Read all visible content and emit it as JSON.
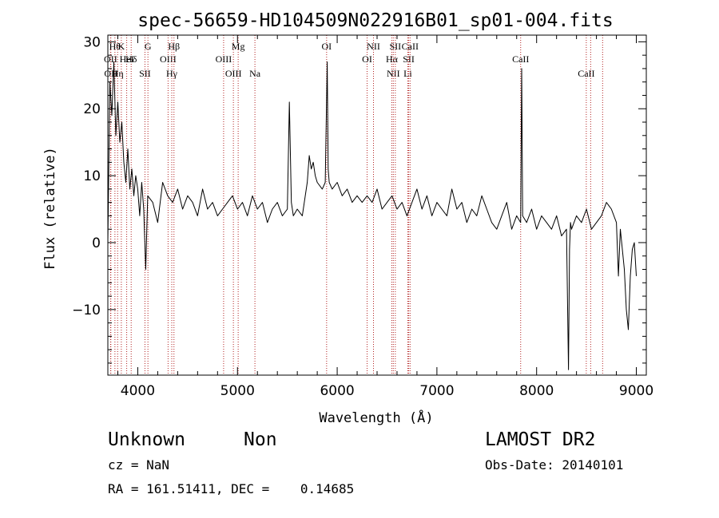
{
  "chart_data": {
    "type": "line",
    "title": "spec-56659-HD104509N022916B01_sp01-004.fits",
    "xlabel": "Wavelength (Å)",
    "ylabel": "Flux (relative)",
    "xlim": [
      3700,
      9100
    ],
    "ylim": [
      -19.8,
      31
    ],
    "xticks": [
      {
        "value": 4000,
        "label": "4000"
      },
      {
        "value": 5000,
        "label": "5000"
      },
      {
        "value": 6000,
        "label": "6000"
      },
      {
        "value": 7000,
        "label": "7000"
      },
      {
        "value": 8000,
        "label": "8000"
      },
      {
        "value": 9000,
        "label": "9000"
      }
    ],
    "yticks": [
      {
        "value": 30,
        "label": "30"
      },
      {
        "value": 20,
        "label": "20"
      },
      {
        "value": 10,
        "label": "10"
      },
      {
        "value": 0,
        "label": "0"
      },
      {
        "value": -10,
        "label": "−10"
      }
    ],
    "grid": false,
    "line_color": "#000000",
    "marker_line_color": "#b22222",
    "series": [
      {
        "x": [
          3700,
          3720,
          3740,
          3760,
          3780,
          3800,
          3820,
          3840,
          3860,
          3880,
          3900,
          3920,
          3940,
          3960,
          3980,
          4000,
          4020,
          4040,
          4060,
          4080,
          4100,
          4150,
          4200,
          4250,
          4300,
          4350,
          4400,
          4450,
          4500,
          4550,
          4600,
          4650,
          4700,
          4750,
          4800,
          4850,
          4900,
          4950,
          5000,
          5050,
          5100,
          5150,
          5200,
          5250,
          5300,
          5350,
          5400,
          5450,
          5500,
          5520,
          5540,
          5560,
          5600,
          5650,
          5700,
          5720,
          5740,
          5760,
          5780,
          5800,
          5850,
          5880,
          5900,
          5910,
          5920,
          5950,
          6000,
          6050,
          6100,
          6150,
          6200,
          6250,
          6300,
          6350,
          6400,
          6450,
          6500,
          6550,
          6600,
          6650,
          6700,
          6750,
          6800,
          6850,
          6900,
          6950,
          7000,
          7050,
          7100,
          7150,
          7200,
          7250,
          7300,
          7350,
          7400,
          7450,
          7500,
          7550,
          7600,
          7650,
          7700,
          7750,
          7800,
          7840,
          7850,
          7860,
          7900,
          7950,
          8000,
          8050,
          8100,
          8150,
          8200,
          8250,
          8300,
          8320,
          8330,
          8340,
          8350,
          8400,
          8450,
          8500,
          8550,
          8600,
          8650,
          8700,
          8750,
          8800,
          8820,
          8840,
          8860,
          8880,
          8900,
          8920,
          8940,
          8960,
          8980,
          9000
        ],
        "y": [
          0,
          24,
          19,
          27,
          16,
          21,
          15,
          18,
          12,
          9,
          14,
          8,
          11,
          7,
          10,
          8,
          4,
          9,
          5,
          -4,
          7,
          6,
          3,
          9,
          7,
          6,
          8,
          5,
          7,
          6,
          4,
          8,
          5,
          6,
          4,
          5,
          6,
          7,
          5,
          6,
          4,
          7,
          5,
          6,
          3,
          5,
          6,
          4,
          5,
          21,
          6,
          4,
          5,
          4,
          9,
          13,
          11,
          12,
          10,
          9,
          8,
          9,
          27,
          11,
          9,
          8,
          9,
          7,
          8,
          6,
          7,
          6,
          7,
          6,
          8,
          5,
          6,
          7,
          5,
          6,
          4,
          6,
          8,
          5,
          7,
          4,
          6,
          5,
          4,
          8,
          5,
          6,
          3,
          5,
          4,
          7,
          5,
          3,
          2,
          4,
          6,
          2,
          4,
          3,
          26,
          4,
          3,
          5,
          2,
          4,
          3,
          2,
          4,
          1,
          2,
          -19,
          -1,
          3,
          2,
          4,
          3,
          5,
          2,
          3,
          4,
          6,
          5,
          3,
          -5,
          2,
          -1,
          -4,
          -10,
          -13,
          -5,
          -1,
          0,
          -5
        ]
      }
    ],
    "line_markers": [
      {
        "x": 3727,
        "label": "OII",
        "row": 2
      },
      {
        "x": 3730,
        "label": "OII",
        "row": 3
      },
      {
        "x": 3771,
        "label": "Hθ",
        "row": 1
      },
      {
        "x": 3798,
        "label": "Hη",
        "row": 3
      },
      {
        "x": 3835,
        "label": "K",
        "row": 1
      },
      {
        "x": 3889,
        "label": "HeI",
        "row": 2
      },
      {
        "x": 3934,
        "label": "Hδ",
        "row": 2
      },
      {
        "x": 4072,
        "label": "SII",
        "row": 3
      },
      {
        "x": 4102,
        "label": "G",
        "row": 1
      },
      {
        "x": 4304,
        "label": "OIII",
        "row": 2
      },
      {
        "x": 4341,
        "label": "Hγ",
        "row": 3
      },
      {
        "x": 4363,
        "label": "Hβ",
        "row": 1
      },
      {
        "x": 4861,
        "label": "OIII",
        "row": 2
      },
      {
        "x": 4959,
        "label": "OIII",
        "row": 3
      },
      {
        "x": 5007,
        "label": "Mg",
        "row": 1
      },
      {
        "x": 5175,
        "label": "Na",
        "row": 3
      },
      {
        "x": 5894,
        "label": "OI",
        "row": 1
      },
      {
        "x": 6300,
        "label": "OI",
        "row": 2
      },
      {
        "x": 6364,
        "label": "NII",
        "row": 1
      },
      {
        "x": 6548,
        "label": "Hα",
        "row": 2
      },
      {
        "x": 6563,
        "label": "NII",
        "row": 3
      },
      {
        "x": 6583,
        "label": "SII",
        "row": 1
      },
      {
        "x": 6708,
        "label": "Li",
        "row": 3
      },
      {
        "x": 6717,
        "label": "SII",
        "row": 2
      },
      {
        "x": 6731,
        "label": "CaII",
        "row": 1
      },
      {
        "x": 7840,
        "label": "CaII",
        "row": 2
      },
      {
        "x": 8498,
        "label": "CaII",
        "row": 3
      },
      {
        "x": 8542,
        "label": "",
        "row": 0
      },
      {
        "x": 8662,
        "label": "",
        "row": 0
      }
    ]
  },
  "info": {
    "class_label": "Unknown",
    "subclass_label": "Non",
    "survey": "LAMOST DR2",
    "redshift_text": "cz = NaN",
    "obs_date_text": "Obs-Date: 20140101",
    "coords_text": "RA = 161.51411, DEC =    0.14685"
  }
}
